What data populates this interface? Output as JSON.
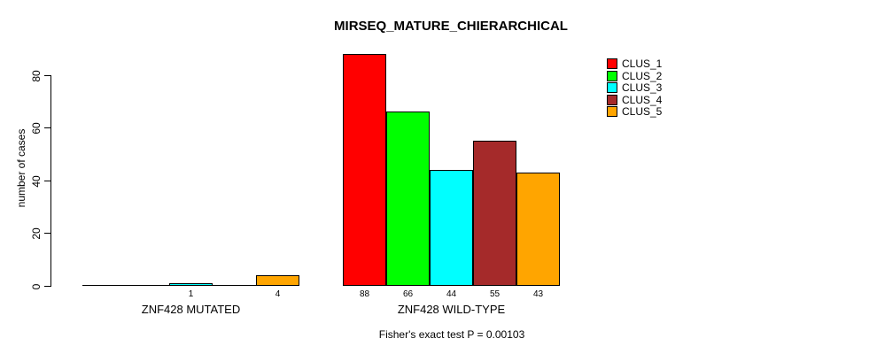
{
  "figure": {
    "title": "MIRSEQ_MATURE_CHIERARCHICAL",
    "annotation": "Fisher's exact test P = 0.00103",
    "background_color": "#ffffff",
    "axis_color": "#000000"
  },
  "chart_data": {
    "type": "bar",
    "title": "MIRSEQ_MATURE_CHIERARCHICAL",
    "xlabel": "",
    "ylabel": "number of cases",
    "ylim": [
      0,
      88
    ],
    "yticks": [
      0,
      20,
      40,
      60,
      80
    ],
    "grid": false,
    "legend_position": "top-right",
    "categories": [
      "ZNF428 MUTATED",
      "ZNF428 WILD-TYPE"
    ],
    "series": [
      {
        "name": "CLUS_1",
        "color": "#FF0000",
        "values": [
          0,
          88
        ]
      },
      {
        "name": "CLUS_2",
        "color": "#00FF00",
        "values": [
          0,
          66
        ]
      },
      {
        "name": "CLUS_3",
        "color": "#00FFFF",
        "values": [
          1,
          44
        ]
      },
      {
        "name": "CLUS_4",
        "color": "#A52A2A",
        "values": [
          0,
          55
        ]
      },
      {
        "name": "CLUS_5",
        "color": "#FFA500",
        "values": [
          4,
          43
        ]
      }
    ],
    "bar_value_labels": [
      [
        "",
        "",
        "1",
        "",
        "4"
      ],
      [
        "88",
        "66",
        "44",
        "55",
        "43"
      ]
    ],
    "annotation": "Fisher's exact test P = 0.00103"
  }
}
